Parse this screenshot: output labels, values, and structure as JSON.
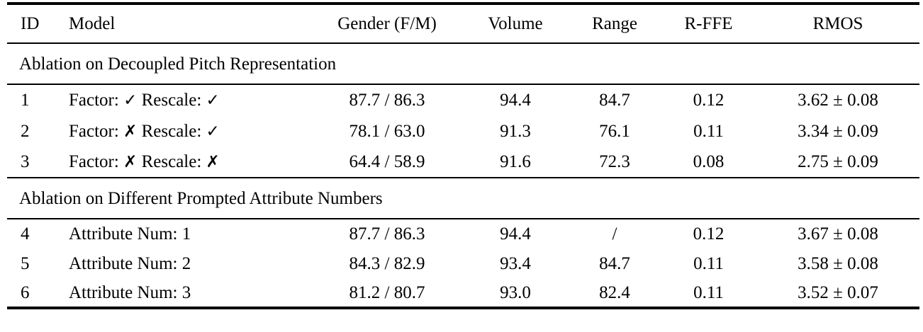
{
  "table": {
    "columns": {
      "id": "ID",
      "model": "Model",
      "gender": "Gender (F/M)",
      "volume": "Volume",
      "range": "Range",
      "rffe": "R-FFE",
      "rmos": "RMOS"
    },
    "sections": [
      {
        "title": "Ablation on Decoupled Pitch Representation",
        "rows": [
          {
            "id": "1",
            "model": {
              "factor_label": "Factor:",
              "factor_mark": "✓",
              "rescale_label": "Rescale:",
              "rescale_mark": "✓"
            },
            "gender": "87.7 / 86.3",
            "volume": "94.4",
            "range": "84.7",
            "rffe": "0.12",
            "rmos": "3.62 ± 0.08"
          },
          {
            "id": "2",
            "model": {
              "factor_label": "Factor:",
              "factor_mark": "✗",
              "rescale_label": "Rescale:",
              "rescale_mark": "✓"
            },
            "gender": "78.1 / 63.0",
            "volume": "91.3",
            "range": "76.1",
            "rffe": "0.11",
            "rmos": "3.34 ± 0.09"
          },
          {
            "id": "3",
            "model": {
              "factor_label": "Factor:",
              "factor_mark": "✗",
              "rescale_label": "Rescale:",
              "rescale_mark": "✗"
            },
            "gender": "64.4 / 58.9",
            "volume": "91.6",
            "range": "72.3",
            "rffe": "0.08",
            "rmos": "2.75 ± 0.09"
          }
        ]
      },
      {
        "title": "Ablation on Different Prompted Attribute Numbers",
        "rows": [
          {
            "id": "4",
            "model": {
              "text": "Attribute Num: 1"
            },
            "gender": "87.7 / 86.3",
            "volume": "94.4",
            "range": "/",
            "rffe": "0.12",
            "rmos": "3.67 ± 0.08"
          },
          {
            "id": "5",
            "model": {
              "text": "Attribute Num: 2"
            },
            "gender": "84.3 / 82.9",
            "volume": "93.4",
            "range": "84.7",
            "rffe": "0.11",
            "rmos": "3.58 ± 0.08"
          },
          {
            "id": "6",
            "model": {
              "text": "Attribute Num: 3"
            },
            "gender": "81.2 / 80.7",
            "volume": "93.0",
            "range": "82.4",
            "rffe": "0.11",
            "rmos": "3.52 ± 0.07"
          }
        ]
      }
    ]
  }
}
